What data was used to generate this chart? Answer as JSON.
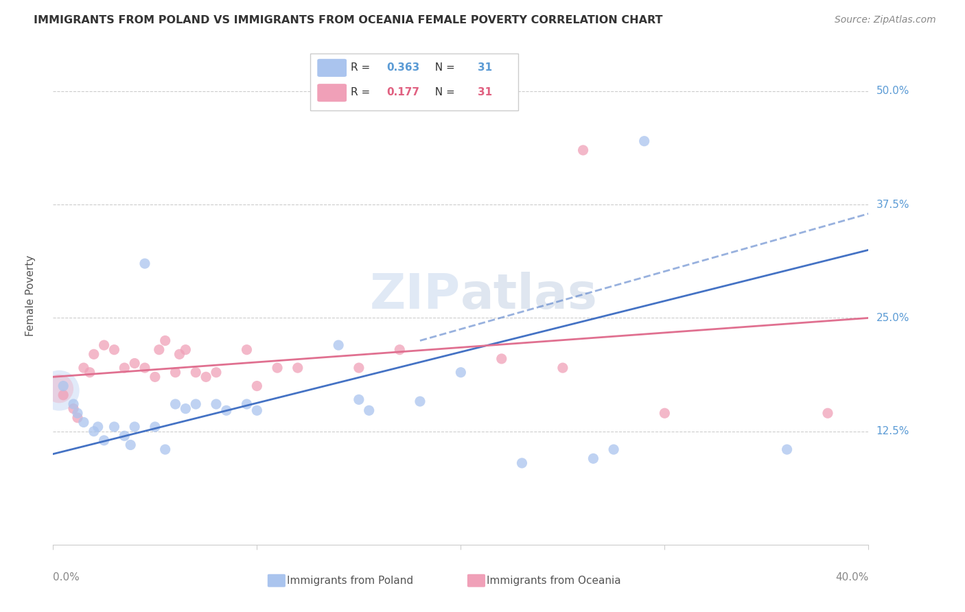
{
  "title": "IMMIGRANTS FROM POLAND VS IMMIGRANTS FROM OCEANIA FEMALE POVERTY CORRELATION CHART",
  "source": "Source: ZipAtlas.com",
  "ylabel": "Female Poverty",
  "ytick_labels": [
    "12.5%",
    "25.0%",
    "37.5%",
    "50.0%"
  ],
  "ytick_values": [
    0.125,
    0.25,
    0.375,
    0.5
  ],
  "xlim": [
    0.0,
    0.4
  ],
  "ylim": [
    0.0,
    0.55
  ],
  "poland_color": "#aac4ee",
  "oceania_color": "#f0a0b8",
  "poland_line_color": "#4472c4",
  "oceania_line_color": "#e07090",
  "background_color": "#ffffff",
  "poland_scatter": [
    [
      0.005,
      0.175
    ],
    [
      0.01,
      0.155
    ],
    [
      0.012,
      0.145
    ],
    [
      0.015,
      0.135
    ],
    [
      0.02,
      0.125
    ],
    [
      0.022,
      0.13
    ],
    [
      0.025,
      0.115
    ],
    [
      0.03,
      0.13
    ],
    [
      0.035,
      0.12
    ],
    [
      0.038,
      0.11
    ],
    [
      0.04,
      0.13
    ],
    [
      0.045,
      0.31
    ],
    [
      0.05,
      0.13
    ],
    [
      0.055,
      0.105
    ],
    [
      0.06,
      0.155
    ],
    [
      0.065,
      0.15
    ],
    [
      0.07,
      0.155
    ],
    [
      0.08,
      0.155
    ],
    [
      0.085,
      0.148
    ],
    [
      0.095,
      0.155
    ],
    [
      0.1,
      0.148
    ],
    [
      0.14,
      0.22
    ],
    [
      0.15,
      0.16
    ],
    [
      0.155,
      0.148
    ],
    [
      0.18,
      0.158
    ],
    [
      0.2,
      0.19
    ],
    [
      0.23,
      0.09
    ],
    [
      0.265,
      0.095
    ],
    [
      0.275,
      0.105
    ],
    [
      0.29,
      0.445
    ],
    [
      0.36,
      0.105
    ]
  ],
  "oceania_scatter": [
    [
      0.005,
      0.165
    ],
    [
      0.01,
      0.15
    ],
    [
      0.012,
      0.14
    ],
    [
      0.015,
      0.195
    ],
    [
      0.018,
      0.19
    ],
    [
      0.02,
      0.21
    ],
    [
      0.025,
      0.22
    ],
    [
      0.03,
      0.215
    ],
    [
      0.035,
      0.195
    ],
    [
      0.04,
      0.2
    ],
    [
      0.045,
      0.195
    ],
    [
      0.05,
      0.185
    ],
    [
      0.052,
      0.215
    ],
    [
      0.055,
      0.225
    ],
    [
      0.06,
      0.19
    ],
    [
      0.062,
      0.21
    ],
    [
      0.065,
      0.215
    ],
    [
      0.07,
      0.19
    ],
    [
      0.075,
      0.185
    ],
    [
      0.08,
      0.19
    ],
    [
      0.095,
      0.215
    ],
    [
      0.1,
      0.175
    ],
    [
      0.11,
      0.195
    ],
    [
      0.12,
      0.195
    ],
    [
      0.15,
      0.195
    ],
    [
      0.17,
      0.215
    ],
    [
      0.22,
      0.205
    ],
    [
      0.25,
      0.195
    ],
    [
      0.26,
      0.435
    ],
    [
      0.3,
      0.145
    ],
    [
      0.38,
      0.145
    ]
  ],
  "poland_line": {
    "x0": 0.0,
    "y0": 0.1,
    "x1": 0.4,
    "y1": 0.325
  },
  "oceania_line": {
    "x0": 0.0,
    "y0": 0.185,
    "x1": 0.4,
    "y1": 0.25
  },
  "dashed_line": {
    "x0": 0.18,
    "y0": 0.225,
    "x1": 0.4,
    "y1": 0.365
  },
  "legend_r1": "0.363",
  "legend_n1": "31",
  "legend_r2": "0.177",
  "legend_n2": "31"
}
